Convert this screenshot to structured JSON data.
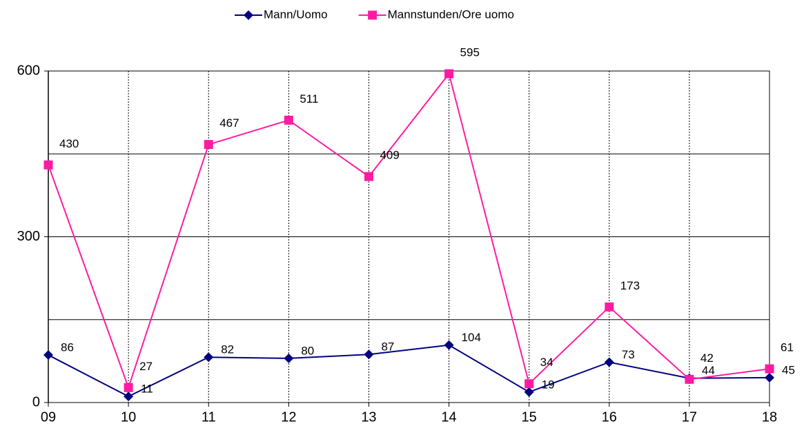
{
  "chart_data": {
    "type": "line",
    "categories": [
      "09",
      "10",
      "11",
      "12",
      "13",
      "14",
      "15",
      "16",
      "17",
      "18"
    ],
    "series": [
      {
        "name": "Mann/Uomo",
        "color": "#000080",
        "marker": "diamond",
        "values": [
          86,
          11,
          82,
          80,
          87,
          104,
          19,
          73,
          44,
          45
        ]
      },
      {
        "name": "Mannstunden/Ore uomo",
        "color": "#ff1aa3",
        "marker": "square",
        "values": [
          430,
          27,
          467,
          511,
          409,
          595,
          34,
          173,
          42,
          61
        ]
      }
    ],
    "ylim": [
      0,
      600
    ],
    "yticks": [
      0,
      300,
      600
    ],
    "minor_yticks": [
      150,
      450
    ],
    "grid": true,
    "legend": "top"
  }
}
